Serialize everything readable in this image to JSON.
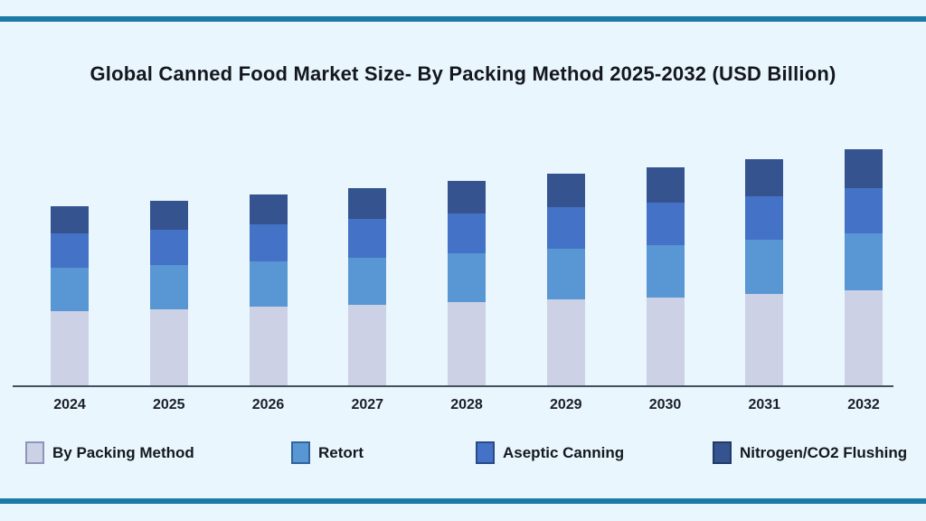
{
  "page": {
    "background": "#e9f6fd",
    "rule_color": "#1b7aa6",
    "axis_color": "#46505c"
  },
  "chart_data": {
    "type": "bar",
    "stacked": true,
    "title": "Global Canned Food Market Size- By Packing Method 2025-2032 (USD Billion)",
    "categories": [
      "2024",
      "2025",
      "2026",
      "2027",
      "2028",
      "2029",
      "2030",
      "2031",
      "2032"
    ],
    "series": [
      {
        "name": "By Packing Method",
        "color": "#cdd1e6",
        "swatch_border": "#8d96ba",
        "values": [
          82,
          84,
          87,
          89,
          92,
          95,
          97,
          101,
          105
        ]
      },
      {
        "name": "Retort",
        "color": "#5897d3",
        "swatch_border": "#31639c",
        "values": [
          48,
          49,
          50,
          52,
          54,
          56,
          58,
          60,
          63
        ]
      },
      {
        "name": "Aseptic Canning",
        "color": "#4472c6",
        "swatch_border": "#2a4a88",
        "values": [
          38,
          39,
          41,
          43,
          44,
          46,
          47,
          48,
          50
        ]
      },
      {
        "name": "Nitrogen/CO2 Flushing",
        "color": "#35548f",
        "swatch_border": "#223a68",
        "values": [
          30,
          32,
          33,
          34,
          36,
          37,
          39,
          41,
          43
        ]
      }
    ],
    "xlabel": "",
    "ylabel": "",
    "y_axis_labels_visible": false,
    "grid": false,
    "legend_position": "bottom",
    "units_note": "values are relative stacked-segment heights; y-axis is unlabeled in the source image"
  }
}
